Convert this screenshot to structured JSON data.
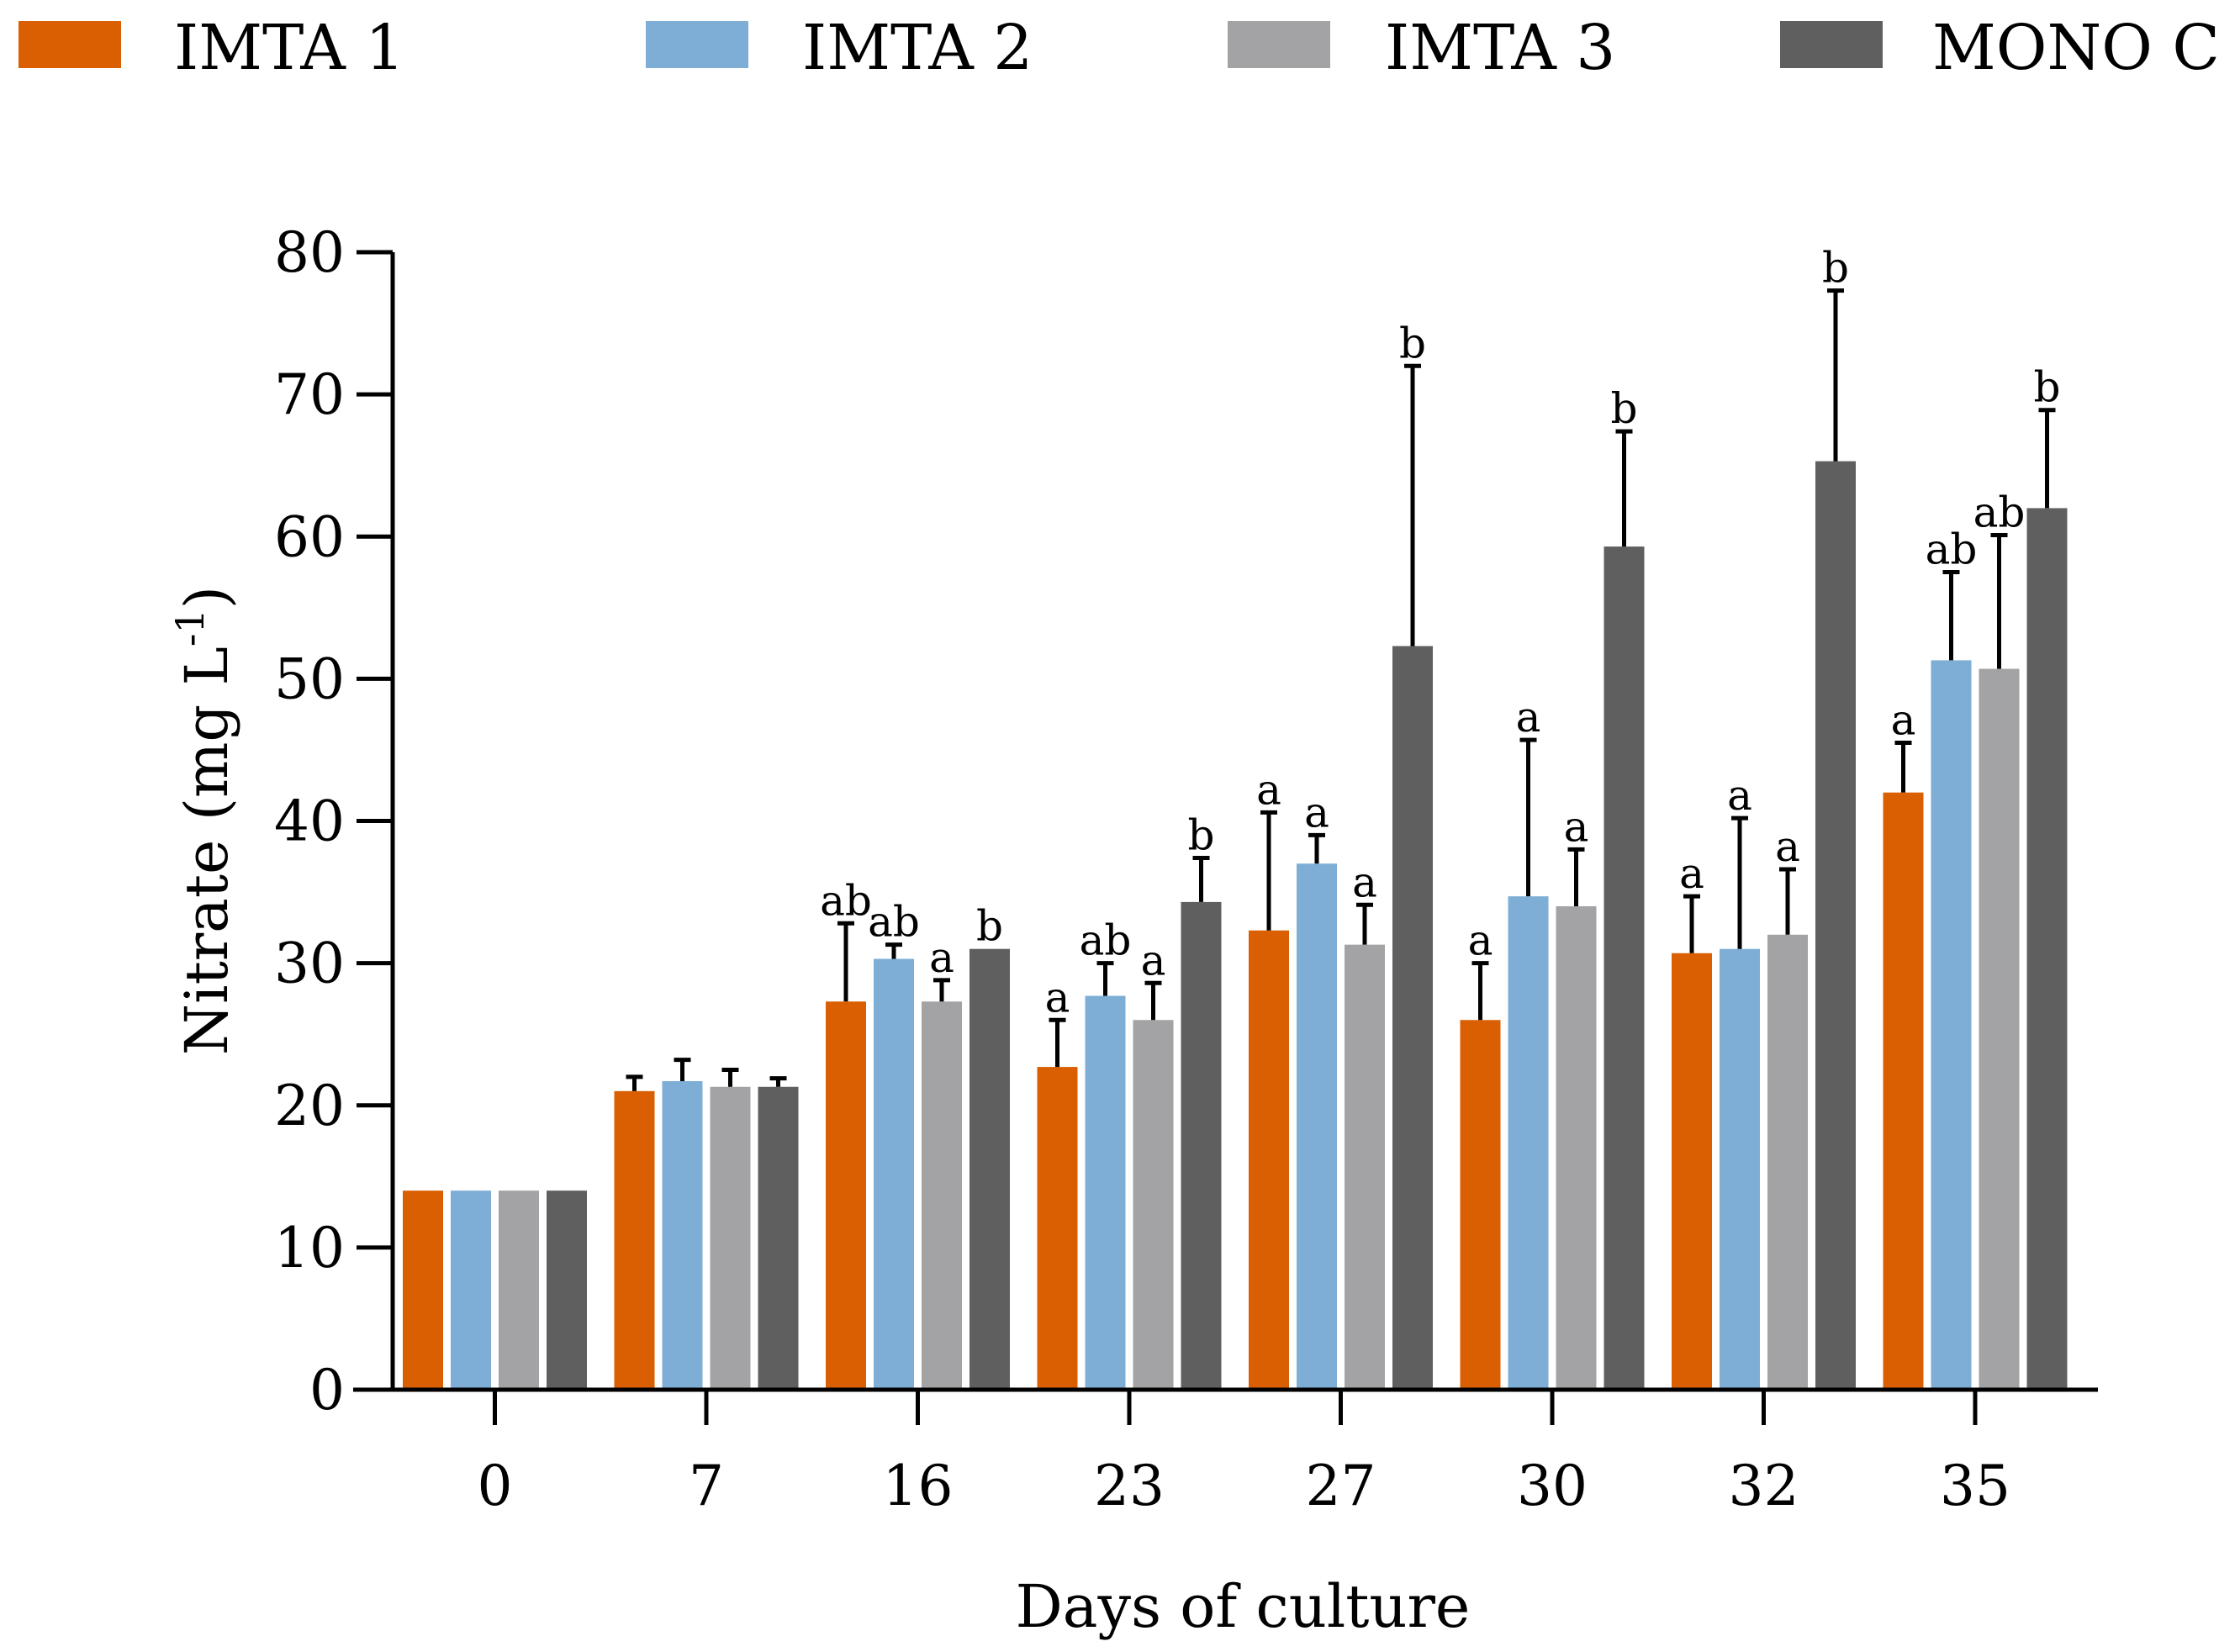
{
  "chart_data": {
    "type": "bar",
    "title": "",
    "xlabel": "Days of culture",
    "ylabel": "Nitrate (mg L",
    "ylabel_superscript": "-1",
    "ylabel_close": ")",
    "ylim": [
      0,
      80
    ],
    "yticks": [
      0,
      10,
      20,
      30,
      40,
      50,
      60,
      70,
      80
    ],
    "grid": false,
    "legend_position": "top",
    "categories": [
      "0",
      "7",
      "16",
      "23",
      "27",
      "30",
      "32",
      "35"
    ],
    "series": [
      {
        "name": "IMTA 1",
        "color": "#D95F02",
        "values": [
          14,
          21,
          27.3,
          22.7,
          32.3,
          26,
          30.7,
          42
        ],
        "errors": [
          0,
          1.0,
          5.5,
          3.3,
          8.3,
          4.0,
          4.0,
          3.5
        ],
        "labels": [
          "",
          "",
          "ab",
          "a",
          "a",
          "a",
          "a",
          "a"
        ]
      },
      {
        "name": "IMTA 2",
        "color": "#7EAED6",
        "values": [
          14,
          21.7,
          30.3,
          27.7,
          37,
          34.7,
          31,
          51.3
        ],
        "errors": [
          0,
          1.5,
          1.0,
          2.3,
          2.0,
          11.0,
          9.2,
          6.2
        ],
        "labels": [
          "",
          "",
          "ab",
          "ab",
          "a",
          "a",
          "a",
          "ab"
        ]
      },
      {
        "name": "IMTA 3",
        "color": "#A3A3A6",
        "values": [
          14,
          21.3,
          27.3,
          26,
          31.3,
          34,
          32,
          50.7
        ],
        "errors": [
          0,
          1.2,
          1.5,
          2.6,
          2.8,
          4.0,
          4.6,
          9.4
        ],
        "labels": [
          "",
          "",
          "a",
          "a",
          "a",
          "a",
          "a",
          "ab"
        ]
      },
      {
        "name": "MONO C",
        "color": "#5F5F5F",
        "values": [
          14,
          21.3,
          31,
          34.3,
          52.3,
          59.3,
          65.3,
          62
        ],
        "errors": [
          0,
          0.6,
          0,
          3.1,
          19.7,
          8.1,
          12.0,
          6.9
        ],
        "labels": [
          "",
          "",
          "b",
          "b",
          "b",
          "b",
          "b",
          "b"
        ]
      }
    ]
  }
}
